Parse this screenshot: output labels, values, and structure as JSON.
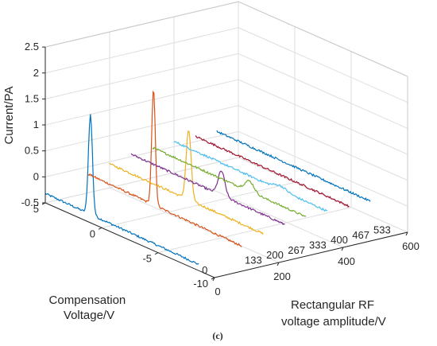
{
  "chart_data": {
    "type": "line",
    "subtype": "3d-waterfall",
    "caption": "(c)",
    "zlabel": "Current/PA",
    "xlabel": [
      "Compensation",
      "Voltage/V"
    ],
    "ylabel": [
      "Rectangular RF",
      "voltage amplitude/V"
    ],
    "xlim": [
      -10,
      5
    ],
    "ylim": [
      0,
      600
    ],
    "zlim": [
      -0.5,
      2.5
    ],
    "x_ticks": [
      "5",
      "0",
      "-5",
      "-10"
    ],
    "y_ticks": [
      "0",
      "200",
      "400",
      "600"
    ],
    "z_ticks": [
      "2.5",
      "2",
      "1.5",
      "1",
      "0.5",
      "0",
      "-0.5"
    ],
    "grid": true,
    "x_range_of_data": [
      -8.6,
      5
    ],
    "series": [
      {
        "name": "0",
        "y": 0,
        "color": "#0072BD",
        "peak_x": 1.0,
        "peak_z": 1.6,
        "width": 0.18,
        "baseline": -0.32,
        "end_z": -0.38
      },
      {
        "name": "133",
        "y": 133,
        "color": "#D95319",
        "peak_x": -0.8,
        "peak_z": 2.08,
        "width": 0.16,
        "baseline": -0.14,
        "end_z": -0.22
      },
      {
        "name": "200",
        "y": 200,
        "color": "#EDB120",
        "peak_x": -2.0,
        "peak_z": 1.3,
        "width": 0.22,
        "baseline": -0.04,
        "end_z": -0.08
      },
      {
        "name": "267",
        "y": 267,
        "color": "#7E2F8E",
        "peak_x": -3.0,
        "peak_z": 0.52,
        "width": 0.3,
        "baseline": 0.05,
        "end_z": 0.0
      },
      {
        "name": "333",
        "y": 333,
        "color": "#77AC30",
        "peak_x": -3.6,
        "peak_z": 0.28,
        "width": 0.4,
        "baseline": 0.08,
        "end_z": 0.05
      },
      {
        "name": "400",
        "y": 400,
        "color": "#4DBEEE",
        "peak_x": -4.4,
        "peak_z": 0.18,
        "width": 0.55,
        "baseline": 0.1,
        "end_z": 0.06
      },
      {
        "name": "467",
        "y": 467,
        "color": "#A2142F",
        "peak_x": 0,
        "peak_z": 0.0,
        "width": 0.5,
        "baseline": 0.1,
        "end_z": 0.06
      },
      {
        "name": "533",
        "y": 533,
        "color": "#0072BD",
        "peak_x": 0,
        "peak_z": 0.0,
        "width": 0.5,
        "baseline": 0.1,
        "end_z": 0.06
      }
    ]
  }
}
